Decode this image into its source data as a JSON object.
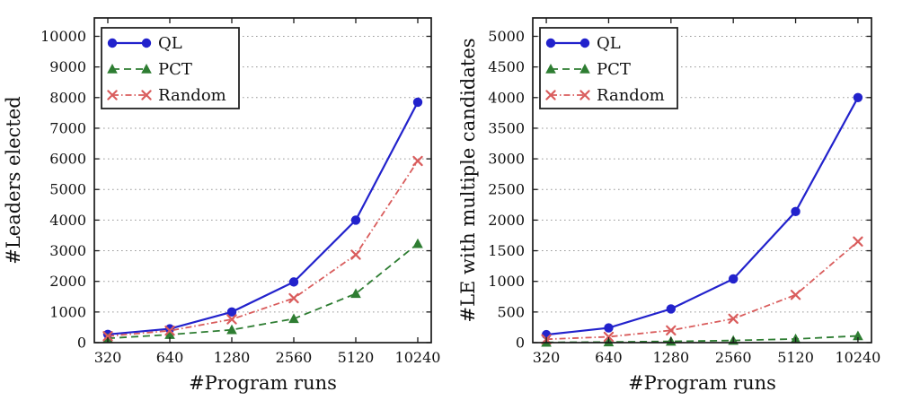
{
  "figure": {
    "background": "#ffffff",
    "grid_color": "#999999",
    "axis_color": "#1a1a1a",
    "text_color": "#111111"
  },
  "chart_data": [
    {
      "type": "line",
      "title": "",
      "xlabel": "#Program runs",
      "ylabel": "#Leaders elected",
      "x_scale": "log2 categorical",
      "categories": [
        "320",
        "640",
        "1280",
        "2560",
        "5120",
        "10240"
      ],
      "ylim": [
        0,
        10600
      ],
      "yticks": [
        0,
        1000,
        2000,
        3000,
        4000,
        5000,
        6000,
        7000,
        8000,
        9000,
        10000
      ],
      "grid": "horizontal dotted",
      "legend_position": "upper left",
      "series": [
        {
          "name": "QL",
          "color": "#2222cc",
          "line": "solid",
          "marker": "circle",
          "values": [
            270,
            450,
            1000,
            1980,
            4000,
            7850
          ]
        },
        {
          "name": "PCT",
          "color": "#2e7d32",
          "line": "dashed",
          "marker": "triangle",
          "values": [
            140,
            260,
            420,
            780,
            1600,
            3230
          ]
        },
        {
          "name": "Random",
          "color": "#d95c5c",
          "line": "dashdot",
          "marker": "x",
          "values": [
            210,
            390,
            760,
            1450,
            2870,
            5930
          ]
        }
      ]
    },
    {
      "type": "line",
      "title": "",
      "xlabel": "#Program runs",
      "ylabel": "#LE with multiple candidates",
      "x_scale": "log2 categorical",
      "categories": [
        "320",
        "640",
        "1280",
        "2560",
        "5120",
        "10240"
      ],
      "ylim": [
        0,
        5300
      ],
      "yticks": [
        0,
        500,
        1000,
        1500,
        2000,
        2500,
        3000,
        3500,
        4000,
        4500,
        5000
      ],
      "grid": "horizontal dotted",
      "legend_position": "upper left",
      "series": [
        {
          "name": "QL",
          "color": "#2222cc",
          "line": "solid",
          "marker": "circle",
          "values": [
            130,
            240,
            550,
            1040,
            2140,
            4000
          ]
        },
        {
          "name": "PCT",
          "color": "#2e7d32",
          "line": "dashed",
          "marker": "triangle",
          "values": [
            5,
            10,
            20,
            35,
            60,
            110
          ]
        },
        {
          "name": "Random",
          "color": "#d95c5c",
          "line": "dashdot",
          "marker": "x",
          "values": [
            55,
            95,
            200,
            390,
            780,
            1650
          ]
        }
      ]
    }
  ]
}
